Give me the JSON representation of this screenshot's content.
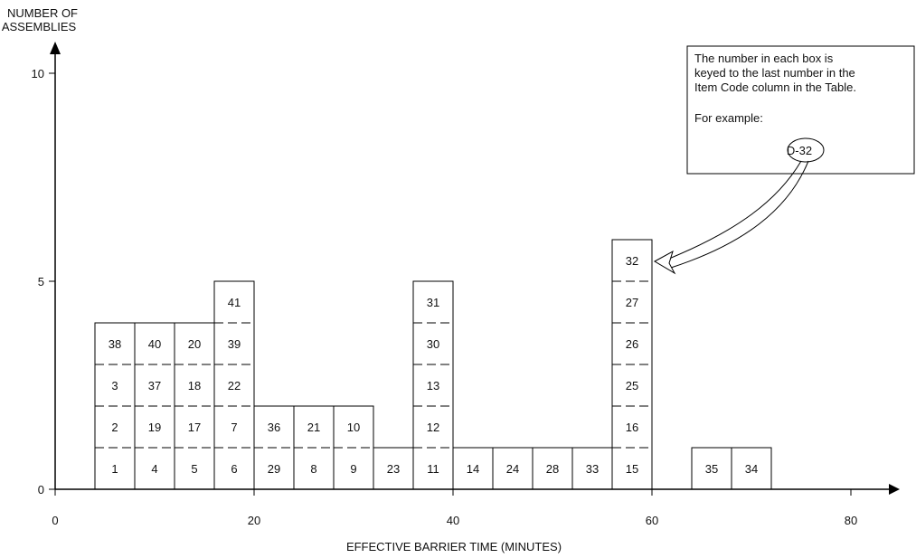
{
  "chart_data": {
    "type": "bar",
    "subtype": "stacked-histogram",
    "ylabel": [
      "NUMBER OF",
      "ASSEMBLIES"
    ],
    "xlabel": "EFFECTIVE BARRIER TIME (MINUTES)",
    "xlim": [
      0,
      84
    ],
    "ylim": [
      0,
      10.5
    ],
    "x_ticks": [
      0,
      20,
      40,
      60,
      80
    ],
    "y_ticks": [
      0,
      5,
      10
    ],
    "bin_width": 4,
    "grid": false,
    "stacks": [
      {
        "x_start": 4,
        "items": [
          "1",
          "2",
          "3",
          "38"
        ]
      },
      {
        "x_start": 8,
        "items": [
          "4",
          "19",
          "37",
          "40"
        ]
      },
      {
        "x_start": 12,
        "items": [
          "5",
          "17",
          "18",
          "20"
        ]
      },
      {
        "x_start": 16,
        "items": [
          "6",
          "7",
          "22",
          "39",
          "41"
        ]
      },
      {
        "x_start": 20,
        "items": [
          "29",
          "36"
        ]
      },
      {
        "x_start": 24,
        "items": [
          "8",
          "21"
        ]
      },
      {
        "x_start": 28,
        "items": [
          "9",
          "10"
        ]
      },
      {
        "x_start": 32,
        "items": [
          "23"
        ]
      },
      {
        "x_start": 36,
        "items": [
          "11",
          "12",
          "13",
          "30",
          "31"
        ]
      },
      {
        "x_start": 40,
        "items": [
          "14"
        ]
      },
      {
        "x_start": 44,
        "items": [
          "24"
        ]
      },
      {
        "x_start": 48,
        "items": [
          "28"
        ]
      },
      {
        "x_start": 52,
        "items": [
          "33"
        ]
      },
      {
        "x_start": 56,
        "items": [
          "15",
          "16",
          "25",
          "26",
          "27",
          "32"
        ]
      },
      {
        "x_start": 64,
        "items": [
          "35"
        ]
      },
      {
        "x_start": 68,
        "items": [
          "34"
        ]
      }
    ],
    "annotation": {
      "lines": [
        "The number in each box is",
        "keyed to the last number in the",
        "Item Code column in the Table."
      ],
      "example_label": "For example:",
      "example_code": "D-32",
      "points_to_item": "32"
    }
  }
}
